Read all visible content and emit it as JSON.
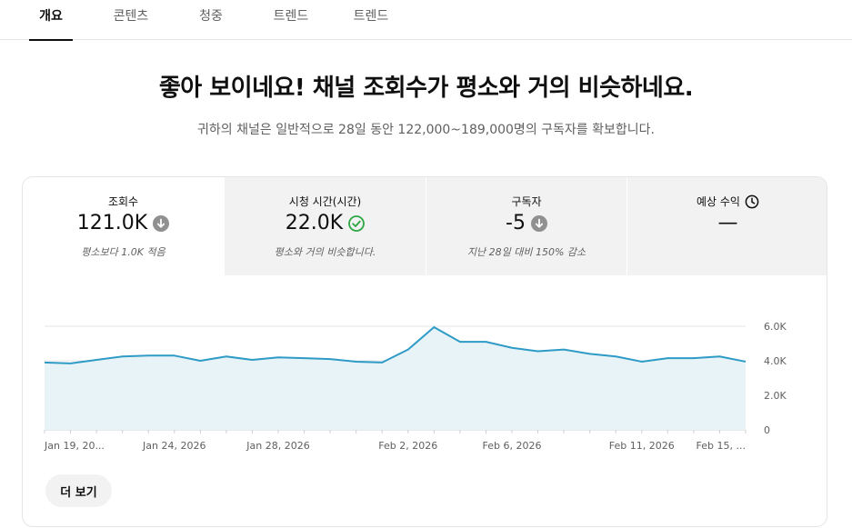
{
  "tabs": [
    {
      "label": "개요",
      "active": true
    },
    {
      "label": "콘텐츠",
      "active": false
    },
    {
      "label": "청중",
      "active": false
    },
    {
      "label": "트렌드",
      "active": false
    },
    {
      "label": "트렌드",
      "active": false
    }
  ],
  "headline": "좋아 보이네요! 채널 조회수가 평소와 거의 비슷하네요.",
  "subline": "귀하의 채널은 일반적으로 28일 동안 122,000~189,000명의 구독자를 확보합니다.",
  "metrics": [
    {
      "label": "조회수",
      "value": "121.0K",
      "status_icon": "arrow-down-circle-icon",
      "note": "평소보다 1.0K 적음"
    },
    {
      "label": "시청 시간(시간)",
      "value": "22.0K",
      "status_icon": "check-circle-icon",
      "note": "평소와 거의 비슷합니다."
    },
    {
      "label": "구독자",
      "value": "-5",
      "status_icon": "arrow-down-circle-icon",
      "note": "지난 28일 대비 150% 감소"
    },
    {
      "label": "예상 수익",
      "value": "—",
      "label_icon": "clock-icon",
      "note": ""
    }
  ],
  "colors": {
    "line": "#2e9bc6",
    "area": "#e8f3f8",
    "good": "#2ba640",
    "neutral": "#909090"
  },
  "chart_data": {
    "type": "area",
    "x": [
      "Jan 19",
      "Jan 20",
      "Jan 21",
      "Jan 22",
      "Jan 23",
      "Jan 24",
      "Jan 25",
      "Jan 26",
      "Jan 27",
      "Jan 28",
      "Jan 29",
      "Jan 30",
      "Jan 31",
      "Feb 1",
      "Feb 2",
      "Feb 3",
      "Feb 4",
      "Feb 5",
      "Feb 6",
      "Feb 7",
      "Feb 8",
      "Feb 9",
      "Feb 10",
      "Feb 11",
      "Feb 12",
      "Feb 13",
      "Feb 14",
      "Feb 15"
    ],
    "values": [
      3900,
      3850,
      4050,
      4250,
      4300,
      4300,
      4000,
      4250,
      4050,
      4200,
      4150,
      4100,
      3950,
      3900,
      4650,
      5950,
      5100,
      5100,
      4750,
      4550,
      4650,
      4400,
      4250,
      3950,
      4150,
      4150,
      4250,
      3950
    ],
    "x_tick_labels": [
      "Jan 19, 20...",
      "Jan 24, 2026",
      "Jan 28, 2026",
      "Feb 2, 2026",
      "Feb 6, 2026",
      "Feb 11, 2026",
      "Feb 15, ..."
    ],
    "y_tick_labels": [
      "6.0K",
      "4.0K",
      "2.0K",
      "0"
    ],
    "y_ticks": [
      6000,
      4000,
      2000,
      0
    ],
    "ylim": [
      0,
      6000
    ],
    "grid": true
  },
  "more_button": "더 보기"
}
